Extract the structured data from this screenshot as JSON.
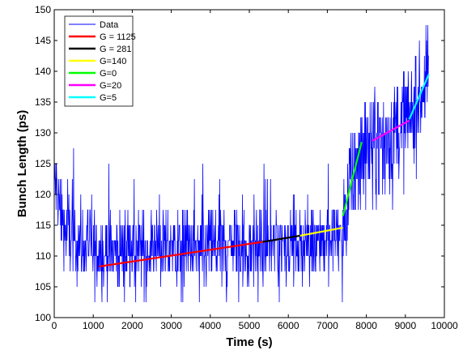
{
  "chart_data": {
    "type": "line",
    "title": "",
    "xlabel": "Time (s)",
    "ylabel": "Bunch Length (ps)",
    "xlim": [
      0,
      10000
    ],
    "ylim": [
      100,
      150
    ],
    "x_ticks": [
      0,
      1000,
      2000,
      3000,
      4000,
      5000,
      6000,
      7000,
      8000,
      9000,
      10000
    ],
    "y_ticks": [
      100,
      105,
      110,
      115,
      120,
      125,
      130,
      135,
      140,
      145,
      150
    ],
    "grid": false,
    "legend_position": "top-left",
    "data_series": {
      "name": "Data",
      "color": "#0000ff",
      "levels": [
        102.5,
        105,
        107.5,
        110,
        112.5,
        115,
        117.5,
        120,
        122.5,
        125,
        127.5,
        130,
        132.5,
        135,
        137.5,
        140,
        142.5,
        145,
        147.5,
        150
      ],
      "x_range": [
        0,
        9600
      ],
      "trend": [
        [
          0,
          122
        ],
        [
          300,
          114
        ],
        [
          1000,
          111
        ],
        [
          5000,
          111.5
        ],
        [
          7000,
          112.8
        ],
        [
          7400,
          114
        ],
        [
          7600,
          121
        ],
        [
          7800,
          127
        ],
        [
          8200,
          129
        ],
        [
          9000,
          131
        ],
        [
          9600,
          139
        ]
      ]
    },
    "fit_lines": [
      {
        "name": "G = 1125",
        "color": "#ff0000",
        "x": [
          1150,
          5350
        ],
        "y": [
          108.3,
          112.3
        ]
      },
      {
        "name": "G = 281",
        "color": "#000000",
        "x": [
          5350,
          6300
        ],
        "y": [
          112.3,
          113.3
        ]
      },
      {
        "name": "G=140",
        "color": "#ffff00",
        "x": [
          6300,
          7400
        ],
        "y": [
          113.3,
          114.6
        ]
      },
      {
        "name": "G=0",
        "color": "#00ff00",
        "x": [
          7400,
          7880
        ],
        "y": [
          116.5,
          128.5
        ]
      },
      {
        "name": "G=20",
        "color": "#ff00ff",
        "x": [
          8150,
          9100
        ],
        "y": [
          128.7,
          132
        ]
      },
      {
        "name": "G=5",
        "color": "#00ffff",
        "x": [
          9100,
          9600
        ],
        "y": [
          132.2,
          139.5
        ]
      }
    ],
    "legend": [
      "Data",
      "G = 1125",
      "G = 281",
      "G=140",
      "G=0",
      "G=20",
      "G=5"
    ]
  }
}
